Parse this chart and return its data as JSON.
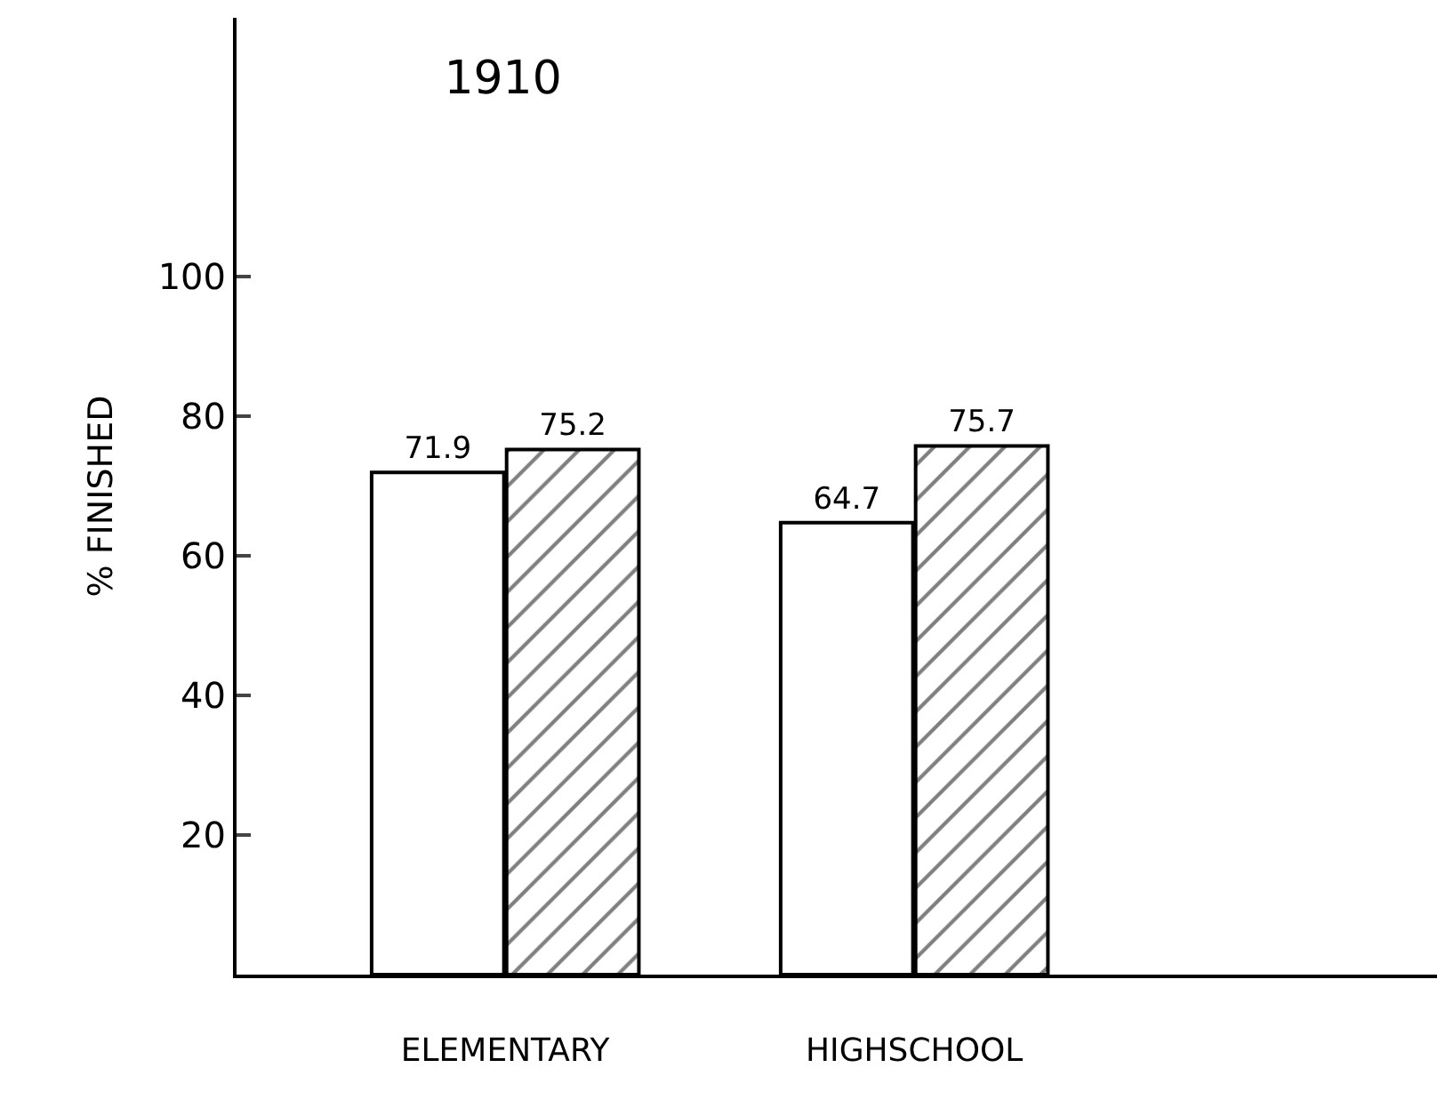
{
  "chart_data": {
    "type": "bar",
    "title": "1910",
    "ylabel": "% FINISHED",
    "categories": [
      "ELEMENTARY",
      "HIGHSCHOOL"
    ],
    "series": [
      {
        "color": "#ffffff",
        "values": [
          71.9,
          64.7
        ]
      },
      {
        "color": "#000000",
        "values": [
          75.2,
          75.7
        ]
      }
    ],
    "ylim": [
      0,
      137
    ],
    "yticks": [
      20,
      40,
      60,
      80,
      100
    ],
    "data_labels": true,
    "grid": false
  }
}
